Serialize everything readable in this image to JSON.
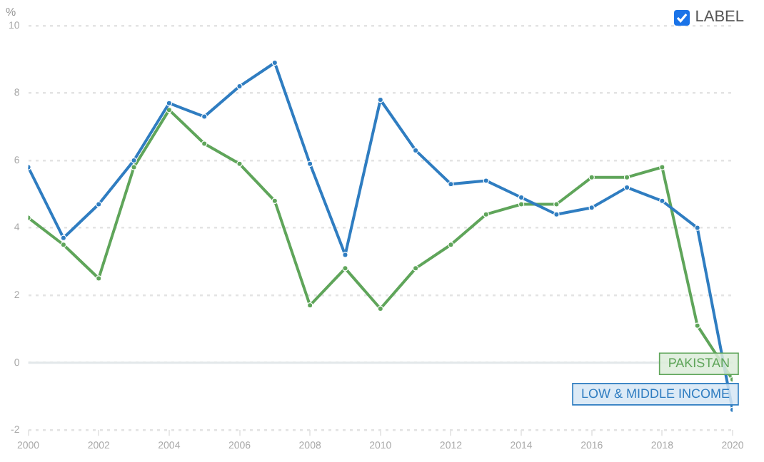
{
  "chart_data": {
    "type": "line",
    "ylabel": "%",
    "x": [
      2000,
      2001,
      2002,
      2003,
      2004,
      2005,
      2006,
      2007,
      2008,
      2009,
      2010,
      2011,
      2012,
      2013,
      2014,
      2015,
      2016,
      2017,
      2018,
      2019,
      2020
    ],
    "series": [
      {
        "name": "LOW & MIDDLE INCOME",
        "color": "#2f7dc1",
        "values": [
          5.8,
          3.7,
          4.7,
          6.0,
          7.7,
          7.3,
          8.2,
          8.9,
          5.9,
          3.2,
          7.8,
          6.3,
          5.3,
          5.4,
          4.9,
          4.4,
          4.6,
          5.2,
          4.8,
          4.0,
          -1.4
        ]
      },
      {
        "name": "PAKISTAN",
        "color": "#5fa55a",
        "values": [
          4.3,
          3.5,
          2.5,
          5.8,
          7.5,
          6.5,
          5.9,
          4.8,
          1.7,
          2.8,
          1.6,
          2.8,
          3.5,
          4.4,
          4.7,
          4.7,
          5.5,
          5.5,
          5.8,
          1.1,
          -0.5
        ]
      }
    ],
    "xlim": [
      2000,
      2020
    ],
    "xticks": [
      2000,
      2002,
      2004,
      2006,
      2008,
      2010,
      2012,
      2014,
      2016,
      2018,
      2020
    ],
    "ylim": [
      -2,
      10
    ],
    "yticks": [
      -2,
      0,
      2,
      4,
      6,
      8,
      10
    ],
    "grid": "y",
    "legend": false,
    "marker": "circle",
    "line_style": "solid",
    "annotations": [
      "LABEL"
    ]
  }
}
